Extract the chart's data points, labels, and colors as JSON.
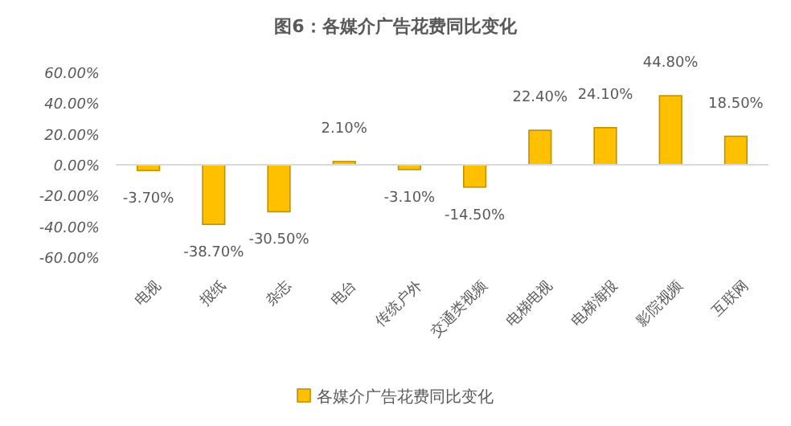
{
  "chart_data": {
    "type": "bar",
    "title": "图6：各媒介广告花费同比变化",
    "categories": [
      "电视",
      "报纸",
      "杂志",
      "电台",
      "传统户外",
      "交通类视频",
      "电梯电视",
      "电梯海报",
      "影院视频",
      "互联网"
    ],
    "series": [
      {
        "name": "各媒介广告花费同比变化",
        "color": "#ffc000",
        "values": [
          -3.7,
          -38.7,
          -30.5,
          2.1,
          -3.1,
          -14.5,
          22.4,
          24.1,
          44.8,
          18.5
        ],
        "value_labels": [
          "-3.70%",
          "-38.70%",
          "-30.50%",
          "2.10%",
          "-3.10%",
          "-14.50%",
          "22.40%",
          "24.10%",
          "44.80%",
          "18.50%"
        ]
      }
    ],
    "ylim": [
      -60,
      60
    ],
    "yticks": [
      {
        "value": -60,
        "label": "-60.00%"
      },
      {
        "value": -40,
        "label": "-40.00%"
      },
      {
        "value": -20,
        "label": "-20.00%"
      },
      {
        "value": 0,
        "label": "0.00%"
      },
      {
        "value": 20,
        "label": "20.00%"
      },
      {
        "value": 40,
        "label": "40.00%"
      },
      {
        "value": 60,
        "label": "60.00%"
      }
    ],
    "legend": "bottom"
  }
}
